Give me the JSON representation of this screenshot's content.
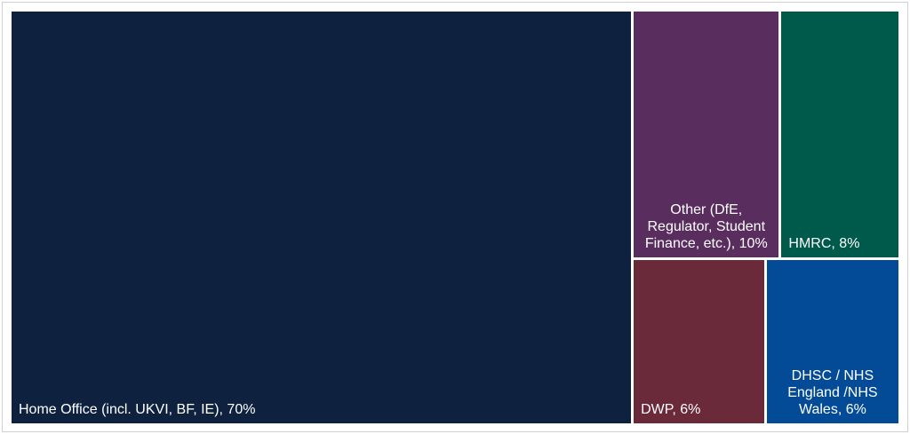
{
  "chart_data": {
    "type": "treemap",
    "categories": [
      "Home Office (incl. UKVI, BF, IE), 70%",
      "Other (DfE, Regulator, Student Finance, etc.), 10%",
      "HMRC, 8%",
      "DWP, 6%",
      "DHSC / NHS England /NHS Wales, 6%"
    ],
    "values": [
      70,
      10,
      8,
      6,
      6
    ],
    "colors": [
      "#0e2240",
      "#5a2d5f",
      "#005a4b",
      "#6b2a3a",
      "#034a97"
    ]
  }
}
